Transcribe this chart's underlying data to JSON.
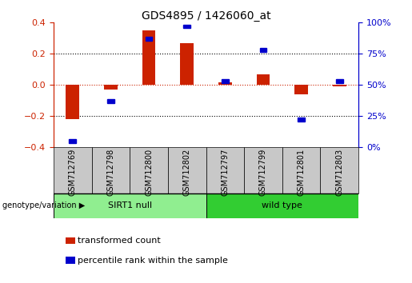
{
  "title": "GDS4895 / 1426060_at",
  "samples": [
    "GSM712769",
    "GSM712798",
    "GSM712800",
    "GSM712802",
    "GSM712797",
    "GSM712799",
    "GSM712801",
    "GSM712803"
  ],
  "groups": [
    {
      "label": "SIRT1 null",
      "indices": [
        0,
        1,
        2,
        3
      ],
      "color": "#90EE90"
    },
    {
      "label": "wild type",
      "indices": [
        4,
        5,
        6,
        7
      ],
      "color": "#32CD32"
    }
  ],
  "red_bars": [
    -0.22,
    -0.03,
    0.35,
    0.27,
    0.015,
    0.07,
    -0.06,
    -0.01
  ],
  "blue_dots_pct": [
    5,
    37,
    87,
    97,
    53,
    78,
    22,
    53
  ],
  "ylim": [
    -0.4,
    0.4
  ],
  "right_ylim": [
    0,
    100
  ],
  "bar_color": "#CC2200",
  "dot_color": "#0000CC",
  "zero_line_color": "#CC2200",
  "legend_items": [
    {
      "label": "transformed count",
      "color": "#CC2200"
    },
    {
      "label": "percentile rank within the sample",
      "color": "#0000CC"
    }
  ],
  "group_label": "genotype/variation",
  "title_fontsize": 10,
  "tick_fontsize": 8,
  "sample_label_fontsize": 7,
  "group_label_fontsize": 8,
  "legend_fontsize": 8,
  "bar_width": 0.35
}
